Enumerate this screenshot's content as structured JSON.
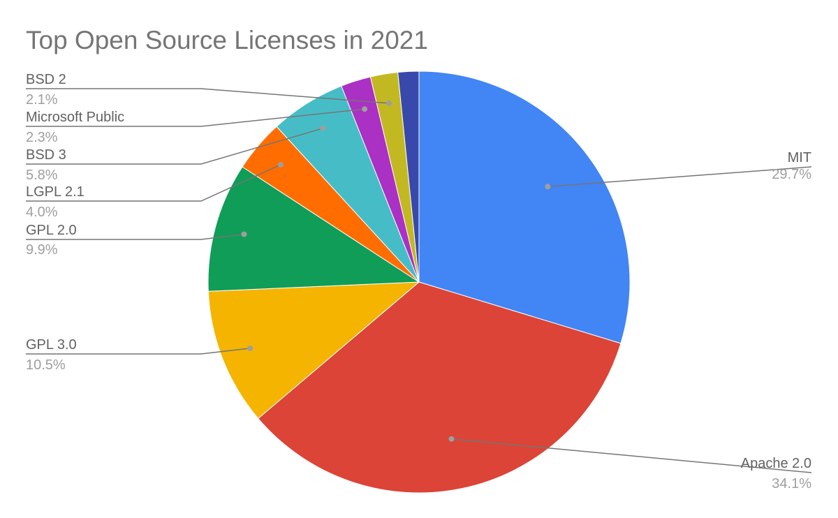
{
  "chart_data": {
    "type": "pie",
    "title": "Top Open Source Licenses in 2021",
    "start_angle_deg": 0,
    "direction": "clockwise",
    "slices": [
      {
        "name": "MIT",
        "value": 29.7,
        "label": "29.7%",
        "color": "#4285f4"
      },
      {
        "name": "Apache 2.0",
        "value": 34.1,
        "label": "34.1%",
        "color": "#db4437"
      },
      {
        "name": "GPL 3.0",
        "value": 10.5,
        "label": "10.5%",
        "color": "#f4b400"
      },
      {
        "name": "GPL 2.0",
        "value": 9.9,
        "label": "9.9%",
        "color": "#0f9d58"
      },
      {
        "name": "LGPL 2.1",
        "value": 4.0,
        "label": "4.0%",
        "color": "#ff6d01"
      },
      {
        "name": "BSD 3",
        "value": 5.8,
        "label": "5.8%",
        "color": "#46bdc6"
      },
      {
        "name": "Microsoft Public",
        "value": 2.3,
        "label": "2.3%",
        "color": "#ab30c4"
      },
      {
        "name": "BSD 2",
        "value": 2.1,
        "label": "2.1%",
        "color": "#c2b922"
      },
      {
        "name": "",
        "value": 1.6,
        "label": "",
        "color": "#3949ab"
      }
    ]
  }
}
